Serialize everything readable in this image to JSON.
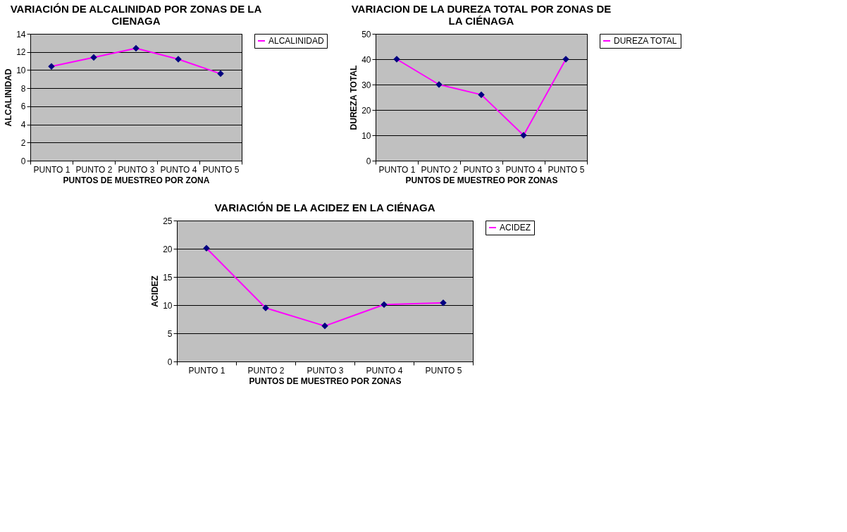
{
  "chart_data": [
    {
      "type": "line",
      "title": "VARIACIÓN DE ALCALINIDAD POR ZONAS DE LA CIENAGA",
      "xlabel": "PUNTOS DE MUESTREO POR ZONA",
      "ylabel": "ALCALINIDAD",
      "categories": [
        "PUNTO 1",
        "PUNTO 2",
        "PUNTO 3",
        "PUNTO 4",
        "PUNTO 5"
      ],
      "series": [
        {
          "name": "ALCALINIDAD",
          "color": "#ff00ff",
          "values": [
            10.4,
            11.4,
            12.4,
            11.2,
            9.6
          ]
        }
      ],
      "ylim": [
        0,
        14
      ],
      "yticks": [
        0,
        2,
        4,
        6,
        8,
        10,
        12,
        14
      ],
      "grid": "y",
      "legend": "right",
      "marker": "diamond",
      "line_style": "solid"
    },
    {
      "type": "line",
      "title": "VARIACION DE LA DUREZA TOTAL POR ZONAS DE LA CIÉNAGA",
      "xlabel": "PUNTOS DE MUESTREO POR ZONAS",
      "ylabel": "DUREZA TOTAL",
      "categories": [
        "PUNTO 1",
        "PUNTO 2",
        "PUNTO 3",
        "PUNTO 4",
        "PUNTO 5"
      ],
      "series": [
        {
          "name": "DUREZA TOTAL",
          "color": "#ff00ff",
          "values": [
            40,
            30,
            26,
            10,
            40
          ]
        }
      ],
      "ylim": [
        0,
        50
      ],
      "yticks": [
        0,
        10,
        20,
        30,
        40,
        50
      ],
      "grid": "y",
      "legend": "right",
      "marker": "diamond",
      "line_style": "solid"
    },
    {
      "type": "line",
      "title": "VARIACIÓN DE LA ACIDEZ EN LA CIÉNAGA",
      "xlabel": "PUNTOS DE MUESTREO POR ZONAS",
      "ylabel": "ACIDEZ",
      "categories": [
        "PUNTO 1",
        "PUNTO 2",
        "PUNTO 3",
        "PUNTO 4",
        "PUNTO 5"
      ],
      "series": [
        {
          "name": "ACIDEZ",
          "color": "#ff00ff",
          "values": [
            20.1,
            9.5,
            6.3,
            10.1,
            10.4
          ]
        }
      ],
      "ylim": [
        0,
        25
      ],
      "yticks": [
        0,
        5,
        10,
        15,
        20,
        25
      ],
      "grid": "y",
      "legend": "right",
      "marker": "diamond",
      "line_style": "solid"
    }
  ]
}
